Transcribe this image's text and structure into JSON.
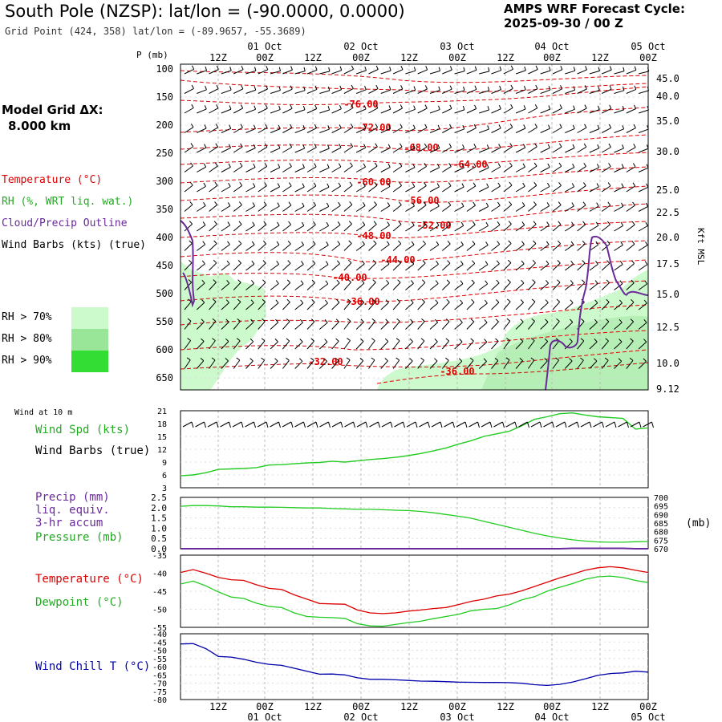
{
  "header": {
    "title": "South Pole (NZSP):  lat/lon = (-90.0000, 0.0000)",
    "grid_point": "Grid Point (424, 358) lat/lon = (-89.9657, -55.3689)",
    "cycle_label": "AMPS WRF Forecast Cycle:",
    "cycle_value": "2025-09-30 / 00  Z"
  },
  "left_panel": {
    "model_grid_label": "Model Grid ΔX:",
    "model_grid_value": "8.000 km",
    "legend_temperature": "Temperature (°C)",
    "legend_rh": "RH (%, WRT liq. wat.)",
    "legend_cloud": "Cloud/Precip Outline",
    "legend_wind": "Wind Barbs (kts) (true)",
    "rh_scale": [
      {
        "label": "RH > 70%",
        "color": "#ccfacc"
      },
      {
        "label": "RH > 80%",
        "color": "#99e699"
      },
      {
        "label": "RH > 90%",
        "color": "#33dd33"
      }
    ]
  },
  "time_axis": {
    "hour_labels": [
      "12Z",
      "00Z",
      "12Z",
      "00Z",
      "12Z",
      "00Z",
      "12Z",
      "00Z",
      "12Z",
      "00Z"
    ],
    "day_labels": [
      "01 Oct",
      "02 Oct",
      "03 Oct",
      "04 Oct",
      "05 Oct"
    ]
  },
  "colors": {
    "temperature": "#dd0000",
    "rh": "#22cc22",
    "cloud": "#6a2a9a",
    "wind_chill": "#0000aa",
    "grid": "#bbbbbb"
  },
  "chart_data": [
    {
      "type": "line",
      "name": "vertical-profile",
      "y_axis_label": "P (mb)",
      "y_ticks": [
        100,
        150,
        200,
        250,
        300,
        350,
        400,
        450,
        500,
        550,
        600,
        650
      ],
      "right_axis_label": "Kft MSL",
      "right_ticks": [
        "45.0",
        "40.0",
        "35.0",
        "30.0",
        "25.0",
        "22.5",
        "20.0",
        "17.5",
        "15.0",
        "12.5",
        "10.0",
        "9.12"
      ],
      "isotherm_labels": [
        "-76.00",
        "-72.00",
        "-68.00",
        "-64.00",
        "-60.00",
        "-56.00",
        "-52.00",
        "-48.00",
        "-44.00",
        "-40.00",
        "-36.00",
        "-32.00",
        "-36.00"
      ]
    },
    {
      "type": "line",
      "name": "wind-10m",
      "panel_label": "Wind at 10 m",
      "legend_speed": "Wind Spd (kts)",
      "legend_barbs": "Wind Barbs (true)",
      "y_ticks": [
        "21",
        "18",
        "15",
        "12",
        "9",
        "6",
        "3"
      ],
      "ylim": [
        3,
        21
      ],
      "speed_kts": [
        5.8,
        6.0,
        6.5,
        7.3,
        7.4,
        7.5,
        7.7,
        8.3,
        8.4,
        8.6,
        8.8,
        8.9,
        9.2,
        9.0,
        9.3,
        9.6,
        9.8,
        10.1,
        10.5,
        11.0,
        11.6,
        12.3,
        13.2,
        14.0,
        15.0,
        15.6,
        16.2,
        17.5,
        19.0,
        19.6,
        20.3,
        20.5,
        20.0,
        19.6,
        19.4,
        19.2,
        16.7,
        17.0
      ]
    },
    {
      "type": "line",
      "name": "precip-pressure",
      "legend_precip": "Precip (mm)",
      "legend_precip2": "liq. equiv.",
      "legend_precip3": "3-hr accum",
      "legend_pressure": "Pressure (mb)",
      "left_ticks": [
        "2.5",
        "2.0",
        "1.5",
        "1.0",
        "0.5",
        "0.0"
      ],
      "right_ticks": [
        "700",
        "695",
        "690",
        "685",
        "680",
        "675",
        "670"
      ],
      "right_unit": "(mb)",
      "ylim_precip": [
        0,
        2.5
      ],
      "ylim_pressure": [
        670,
        700
      ],
      "pressure_mb": [
        694.8,
        695.2,
        695.2,
        695.0,
        694.5,
        694.5,
        694.3,
        694.3,
        694.2,
        694.0,
        693.8,
        693.8,
        693.5,
        693.3,
        693.0,
        693.0,
        692.8,
        692.5,
        692.3,
        691.8,
        691.0,
        690.0,
        689.0,
        687.8,
        686.0,
        684.3,
        682.5,
        680.8,
        679.0,
        677.5,
        676.3,
        675.2,
        674.5,
        674.0,
        673.8,
        673.8,
        674.1,
        674.2
      ],
      "precip_mm": [
        0,
        0,
        0,
        0,
        0,
        0,
        0,
        0,
        0,
        0,
        0,
        0,
        0,
        0,
        0,
        0,
        0,
        0,
        0,
        0,
        0,
        0,
        0,
        0,
        0,
        0,
        0,
        0,
        0,
        0,
        0,
        0.02,
        0.02,
        0.02,
        0.02,
        0.02,
        0,
        0
      ]
    },
    {
      "type": "line",
      "name": "temperature-dewpoint",
      "legend_temp": "Temperature (°C)",
      "legend_dew": "Dewpoint (°C)",
      "y_ticks": [
        "-35",
        "-40",
        "-45",
        "-50",
        "-55"
      ],
      "ylim": [
        -55,
        -35
      ],
      "temperature_c": [
        -39.8,
        -39.0,
        -40.0,
        -41.2,
        -41.8,
        -42.0,
        -43.2,
        -44.2,
        -44.5,
        -46.0,
        -47.2,
        -48.4,
        -48.5,
        -48.6,
        -50.2,
        -51.0,
        -51.2,
        -51.0,
        -50.5,
        -50.2,
        -49.8,
        -49.5,
        -48.7,
        -47.8,
        -47.2,
        -46.3,
        -45.8,
        -44.9,
        -43.7,
        -42.5,
        -41.3,
        -40.3,
        -39.2,
        -38.5,
        -38.2,
        -38.5,
        -39.2,
        -39.8
      ],
      "dewpoint_c": [
        -43.0,
        -42.2,
        -43.5,
        -45.2,
        -46.6,
        -47.0,
        -48.3,
        -49.2,
        -49.5,
        -51.0,
        -52.0,
        -52.2,
        -52.3,
        -52.5,
        -54.0,
        -54.6,
        -54.7,
        -54.2,
        -53.7,
        -53.3,
        -52.6,
        -52.0,
        -51.4,
        -50.4,
        -50.0,
        -49.8,
        -48.8,
        -47.4,
        -46.5,
        -45.0,
        -43.9,
        -42.9,
        -41.7,
        -41.0,
        -40.8,
        -41.2,
        -42.0,
        -42.6
      ]
    },
    {
      "type": "line",
      "name": "wind-chill",
      "legend": "Wind Chill T (°C)",
      "y_ticks": [
        "-40",
        "-45",
        "-50",
        "-55",
        "-60",
        "-65",
        "-70",
        "-75",
        "-80"
      ],
      "ylim": [
        -80,
        -40
      ],
      "wind_chill_c": [
        -46.2,
        -46.0,
        -49.0,
        -53.8,
        -54.2,
        -55.5,
        -57.3,
        -58.6,
        -59.2,
        -61.0,
        -62.8,
        -64.6,
        -64.5,
        -65.0,
        -66.8,
        -67.7,
        -67.7,
        -68.0,
        -68.4,
        -68.8,
        -68.9,
        -69.1,
        -69.4,
        -69.5,
        -69.6,
        -69.6,
        -69.7,
        -70.1,
        -71.0,
        -71.4,
        -70.8,
        -69.4,
        -67.4,
        -65.3,
        -64.2,
        -63.8,
        -62.8,
        -63.3
      ]
    }
  ]
}
